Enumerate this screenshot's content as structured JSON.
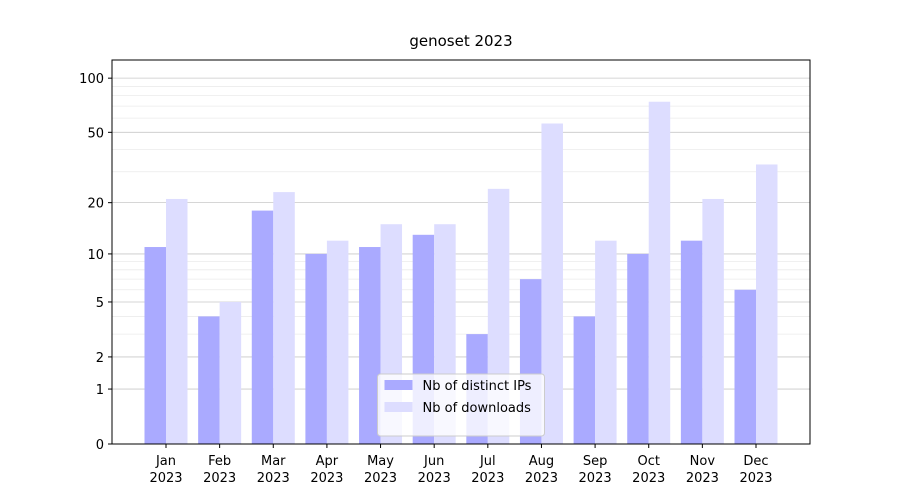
{
  "chart_data": {
    "type": "bar",
    "title": "genoset 2023",
    "categories": [
      "Jan 2023",
      "Feb 2023",
      "Mar 2023",
      "Apr 2023",
      "May 2023",
      "Jun 2023",
      "Jul 2023",
      "Aug 2023",
      "Sep 2023",
      "Oct 2023",
      "Nov 2023",
      "Dec 2023"
    ],
    "series": [
      {
        "name": "Nb of distinct IPs",
        "color": "#aaaaff",
        "values": [
          11,
          4,
          18,
          10,
          11,
          13,
          3,
          7,
          4,
          10,
          12,
          6
        ]
      },
      {
        "name": "Nb of downloads",
        "color": "#ddddff",
        "values": [
          21,
          5,
          23,
          12,
          15,
          15,
          24,
          56,
          12,
          74,
          21,
          33
        ]
      }
    ],
    "yscale": "log1p",
    "ylim": [
      0,
      126
    ],
    "yticks": [
      0,
      1,
      2,
      5,
      10,
      20,
      50,
      100
    ],
    "minor_yticks": [
      3,
      4,
      6,
      7,
      8,
      9,
      30,
      40,
      60,
      70,
      80,
      90
    ],
    "grid": true,
    "legend": "lower center"
  }
}
